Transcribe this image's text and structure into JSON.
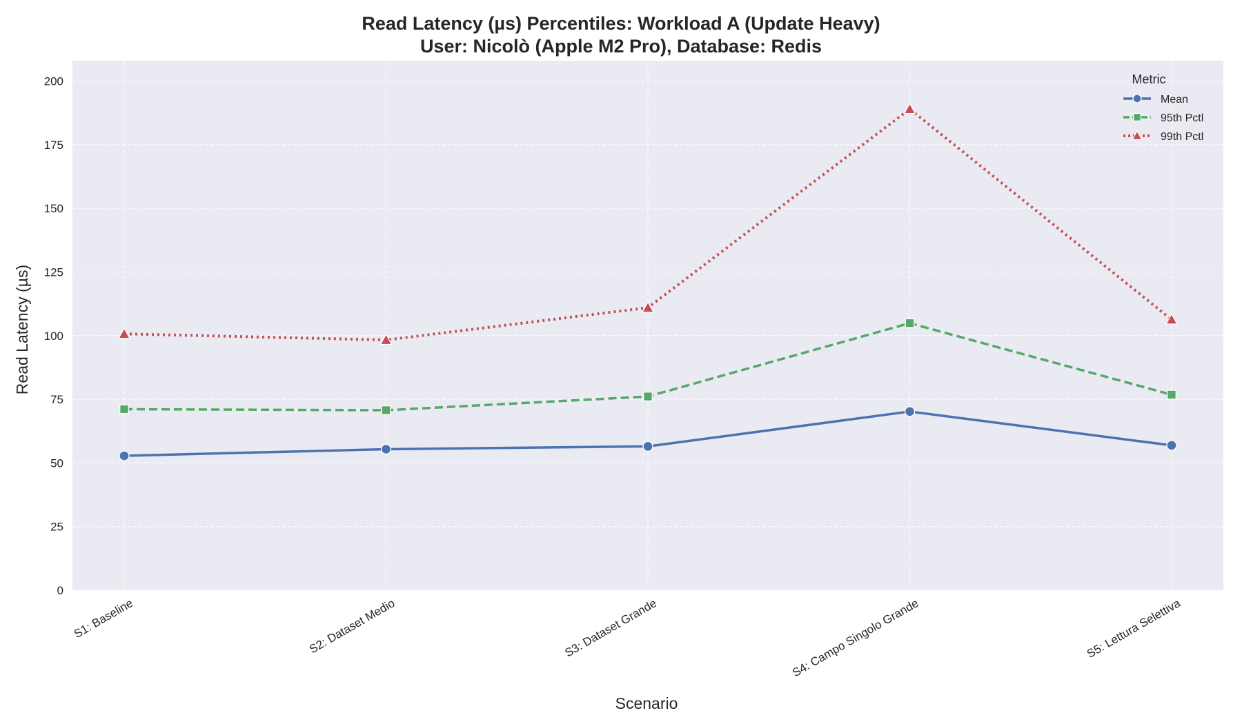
{
  "chart_data": {
    "type": "line",
    "title": "Read Latency (µs) Percentiles: Workload A (Update Heavy)",
    "subtitle": "User: Nicolò (Apple M2 Pro), Database: Redis",
    "xlabel": "Scenario",
    "ylabel": "Read Latency (µs)",
    "ylim": [
      0,
      208
    ],
    "yticks": [
      0,
      25,
      50,
      75,
      100,
      125,
      150,
      175,
      200
    ],
    "grid": true,
    "legend_placement": "top-right",
    "legend_title": "Metric",
    "categories": [
      "S1: Baseline",
      "S2: Dataset Medio",
      "S3: Dataset Grande",
      "S4: Campo Singolo Grande",
      "S5: Lettura Selettiva"
    ],
    "series": [
      {
        "name": "Mean",
        "values": [
          52.8,
          55.4,
          56.5,
          70.2,
          56.9
        ],
        "color": "#4c72b0",
        "marker": "circle",
        "linestyle": "solid"
      },
      {
        "name": "95th Pctl",
        "values": [
          71.1,
          70.7,
          76.1,
          104.9,
          76.8
        ],
        "color": "#55a868",
        "marker": "square",
        "linestyle": "dashed"
      },
      {
        "name": "99th Pctl",
        "values": [
          100.7,
          98.3,
          111.0,
          189.0,
          106.3
        ],
        "color": "#c44e52",
        "marker": "triangle",
        "linestyle": "dotted"
      }
    ],
    "colors": {
      "plot_background": "#eaeaf2",
      "grid": "#ffffff"
    }
  }
}
